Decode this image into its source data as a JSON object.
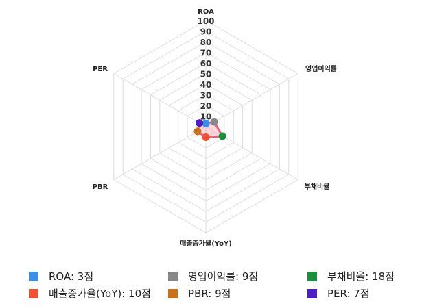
{
  "chart_data": {
    "type": "radar",
    "axes": [
      "ROA",
      "영업이익률",
      "부채비율",
      "매출증가율(YoY)",
      "PBR",
      "PER"
    ],
    "values": [
      3,
      9,
      18,
      10,
      9,
      7
    ],
    "range": [
      0,
      100
    ],
    "ticks": [
      "10",
      "20",
      "30",
      "40",
      "50",
      "60",
      "70",
      "80",
      "90",
      "100"
    ],
    "grid": true,
    "point_colors": [
      "#3b8de6",
      "#888888",
      "#1e8e3e",
      "#ee5138",
      "#c8711a",
      "#4b1fc1"
    ],
    "line_color": "#f25d7a",
    "fill_color": "rgba(248,150,170,0.4)",
    "legend_placement": "bottom",
    "legend": [
      {
        "label": "ROA: 3점",
        "color": "#3b8de6"
      },
      {
        "label": "영업이익률: 9점",
        "color": "#888888"
      },
      {
        "label": "부채비율: 18점",
        "color": "#1e8e3e"
      },
      {
        "label": "매출증가율(YoY): 10점",
        "color": "#ee5138"
      },
      {
        "label": "PBR: 9점",
        "color": "#c8711a"
      },
      {
        "label": "PER: 7점",
        "color": "#4b1fc1"
      }
    ]
  }
}
